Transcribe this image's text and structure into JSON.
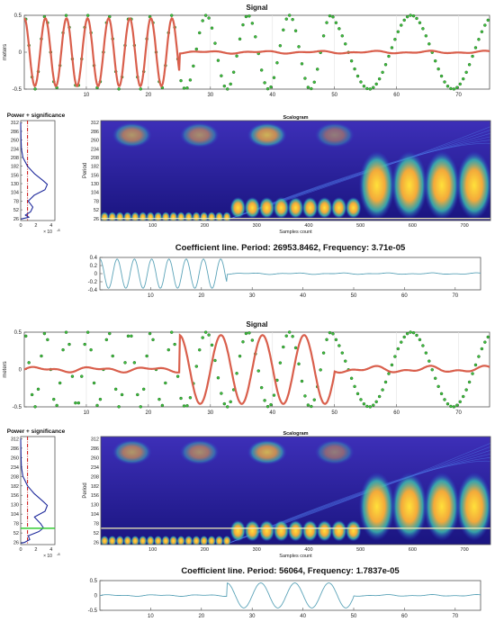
{
  "chart_data": [
    {
      "panel": 1,
      "type": "line",
      "title": "Signal",
      "ylabel": "meters",
      "xlim": [
        0,
        75
      ],
      "ylim": [
        -0.5,
        0.5
      ],
      "x_ticks": [
        10,
        20,
        30,
        40,
        50,
        60,
        70
      ],
      "y_ticks": [
        -0.5,
        0,
        0.5
      ],
      "y_tick_labels": [
        "-0.5",
        "0",
        "0.5"
      ],
      "grid": true,
      "series": [
        {
          "role": "signal",
          "style": "green circle markers",
          "color": "#2ca02c",
          "segments": [
            {
              "x0": 0,
              "x1": 25,
              "period": 3.4
            },
            {
              "x0": 25,
              "x1": 50,
              "period": 6.7
            },
            {
              "x0": 50,
              "x1": 75,
              "period": 13.5
            }
          ],
          "amplitude": 0.5
        },
        {
          "role": "reconstruction",
          "style": "red line",
          "color": "#d95f4c",
          "segments": [
            {
              "x0": 0,
              "x1": 25,
              "period": 3.4,
              "amplitude": 0.46
            },
            {
              "x0": 25,
              "x1": 75,
              "amplitude": 0.02
            }
          ]
        }
      ]
    },
    {
      "panel": 1,
      "type": "line",
      "title": "Power + significance",
      "y_ticks": [
        26,
        52,
        78,
        104,
        130,
        156,
        182,
        208,
        234,
        260,
        286,
        312
      ],
      "x_ticks": [
        0,
        2,
        4
      ],
      "x_scale_label": "× 10",
      "x_scale_exp": "-8",
      "xlim": [
        0,
        4.5
      ],
      "significance_x": 0.9,
      "curve": [
        [
          0,
          312
        ],
        [
          0.05,
          260
        ],
        [
          0.1,
          234
        ],
        [
          0.3,
          208
        ],
        [
          0.9,
          182
        ],
        [
          1.8,
          160
        ],
        [
          2.9,
          140
        ],
        [
          3.5,
          128
        ],
        [
          3.2,
          112
        ],
        [
          1.8,
          96
        ],
        [
          1.0,
          78
        ],
        [
          1.6,
          60
        ],
        [
          1.3,
          46
        ],
        [
          0.6,
          36
        ],
        [
          1.1,
          30
        ],
        [
          0.3,
          26
        ],
        [
          0.05,
          24
        ]
      ],
      "series": [
        {
          "role": "power",
          "color": "#1f2a9c"
        },
        {
          "role": "significance",
          "color": "#cc1111",
          "style": "dash-dot"
        }
      ]
    },
    {
      "panel": 1,
      "type": "heatmap",
      "title": "Scalogram",
      "xlabel": "Samples count",
      "ylabel": "Period",
      "xlim": [
        0,
        750
      ],
      "x_ticks": [
        100,
        200,
        300,
        400,
        500,
        600,
        700
      ],
      "y_ticks": [
        26,
        52,
        78,
        104,
        130,
        156,
        182,
        208,
        234,
        260,
        286,
        312
      ],
      "coefficient_line_period": 26,
      "bands": [
        {
          "x0": 0,
          "x1": 250,
          "period": 26,
          "count": 17
        },
        {
          "x0": 250,
          "x1": 500,
          "period": 52,
          "count": 9
        },
        {
          "x0": 500,
          "x1": 750,
          "period": 104,
          "count": 4
        }
      ]
    },
    {
      "panel": 1,
      "type": "line",
      "title": "Coefficient line. Period:  26953.8462, Frequency:  3.71e-05",
      "xlim": [
        0,
        75
      ],
      "ylim": [
        -0.4,
        0.4
      ],
      "x_ticks": [
        10,
        20,
        30,
        40,
        50,
        60,
        70
      ],
      "y_ticks": [
        -0.4,
        -0.2,
        0,
        0.2,
        0.4
      ],
      "y_tick_labels": [
        "-0.4",
        "-0.2",
        "0",
        "0.2",
        "0.4"
      ],
      "series": [
        {
          "role": "coefficient",
          "color": "#5ba3b8",
          "segments": [
            {
              "x0": 0,
              "x1": 25,
              "period": 3.4,
              "amplitude": 0.36
            },
            {
              "x0": 25,
              "x1": 75,
              "amplitude": 0.02
            }
          ]
        }
      ]
    },
    {
      "panel": 2,
      "type": "line",
      "title": "Signal",
      "ylabel": "meters",
      "xlim": [
        0,
        75
      ],
      "ylim": [
        -0.5,
        0.5
      ],
      "x_ticks": [
        10,
        20,
        30,
        40,
        50,
        60,
        70
      ],
      "y_ticks": [
        -0.5,
        0,
        0.5
      ],
      "y_tick_labels": [
        "-0.5",
        "0",
        "0.5"
      ],
      "grid": true,
      "series": [
        {
          "role": "signal",
          "style": "green circle markers",
          "color": "#2ca02c",
          "segments": [
            {
              "x0": 0,
              "x1": 25,
              "period": 3.4
            },
            {
              "x0": 25,
              "x1": 50,
              "period": 6.7
            },
            {
              "x0": 50,
              "x1": 75,
              "period": 13.5
            }
          ],
          "amplitude": 0.5
        },
        {
          "role": "reconstruction",
          "style": "red line",
          "color": "#d95f4c",
          "segments": [
            {
              "x0": 0,
              "x1": 25,
              "amplitude": 0.04
            },
            {
              "x0": 25,
              "x1": 50,
              "period": 6.7,
              "amplitude": 0.46
            },
            {
              "x0": 50,
              "x1": 75,
              "amplitude": 0.05
            }
          ]
        }
      ]
    },
    {
      "panel": 2,
      "type": "line",
      "title": "Power + significance",
      "y_ticks": [
        26,
        52,
        78,
        104,
        130,
        156,
        182,
        208,
        234,
        260,
        286,
        312
      ],
      "x_ticks": [
        0,
        2,
        4
      ],
      "x_scale_label": "× 10",
      "x_scale_exp": "-8",
      "xlim": [
        0,
        4.5
      ],
      "significance_x": 0.9,
      "marker_period": 65,
      "curve": [
        [
          0,
          312
        ],
        [
          0.05,
          260
        ],
        [
          0.1,
          234
        ],
        [
          0.3,
          208
        ],
        [
          0.9,
          182
        ],
        [
          1.8,
          160
        ],
        [
          2.9,
          140
        ],
        [
          3.5,
          128
        ],
        [
          3.2,
          112
        ],
        [
          1.8,
          96
        ],
        [
          2.6,
          78
        ],
        [
          3.0,
          66
        ],
        [
          2.4,
          56
        ],
        [
          1.0,
          44
        ],
        [
          1.2,
          34
        ],
        [
          0.5,
          26
        ],
        [
          0.05,
          24
        ]
      ],
      "series": [
        {
          "role": "power",
          "color": "#1f2a9c"
        },
        {
          "role": "significance",
          "color": "#cc1111",
          "style": "dash-dot"
        },
        {
          "role": "selected-period",
          "color": "#33cc33"
        }
      ]
    },
    {
      "panel": 2,
      "type": "heatmap",
      "title": "Scalogram",
      "xlabel": "Samples count",
      "ylabel": "Period",
      "xlim": [
        0,
        750
      ],
      "x_ticks": [
        100,
        200,
        300,
        400,
        500,
        600,
        700
      ],
      "y_ticks": [
        26,
        52,
        78,
        104,
        130,
        156,
        182,
        208,
        234,
        260,
        286,
        312
      ],
      "coefficient_line_period": 65,
      "bands": [
        {
          "x0": 0,
          "x1": 250,
          "period": 26,
          "count": 17
        },
        {
          "x0": 250,
          "x1": 500,
          "period": 52,
          "count": 9
        },
        {
          "x0": 500,
          "x1": 750,
          "period": 104,
          "count": 4
        }
      ]
    },
    {
      "panel": 2,
      "type": "line",
      "title": "Coefficient line. Period:  56064, Frequency:  1.7837e-05",
      "xlim": [
        0,
        75
      ],
      "ylim": [
        -0.5,
        0.5
      ],
      "x_ticks": [
        10,
        20,
        30,
        40,
        50,
        60,
        70
      ],
      "y_ticks": [
        -0.5,
        0,
        0.5
      ],
      "y_tick_labels": [
        "-0.5",
        "0",
        "0.5"
      ],
      "series": [
        {
          "role": "coefficient",
          "color": "#5ba3b8",
          "segments": [
            {
              "x0": 0,
              "x1": 25,
              "amplitude": 0.03
            },
            {
              "x0": 25,
              "x1": 50,
              "period": 6.7,
              "amplitude": 0.42
            },
            {
              "x0": 50,
              "x1": 75,
              "amplitude": 0.03
            }
          ]
        }
      ]
    }
  ]
}
